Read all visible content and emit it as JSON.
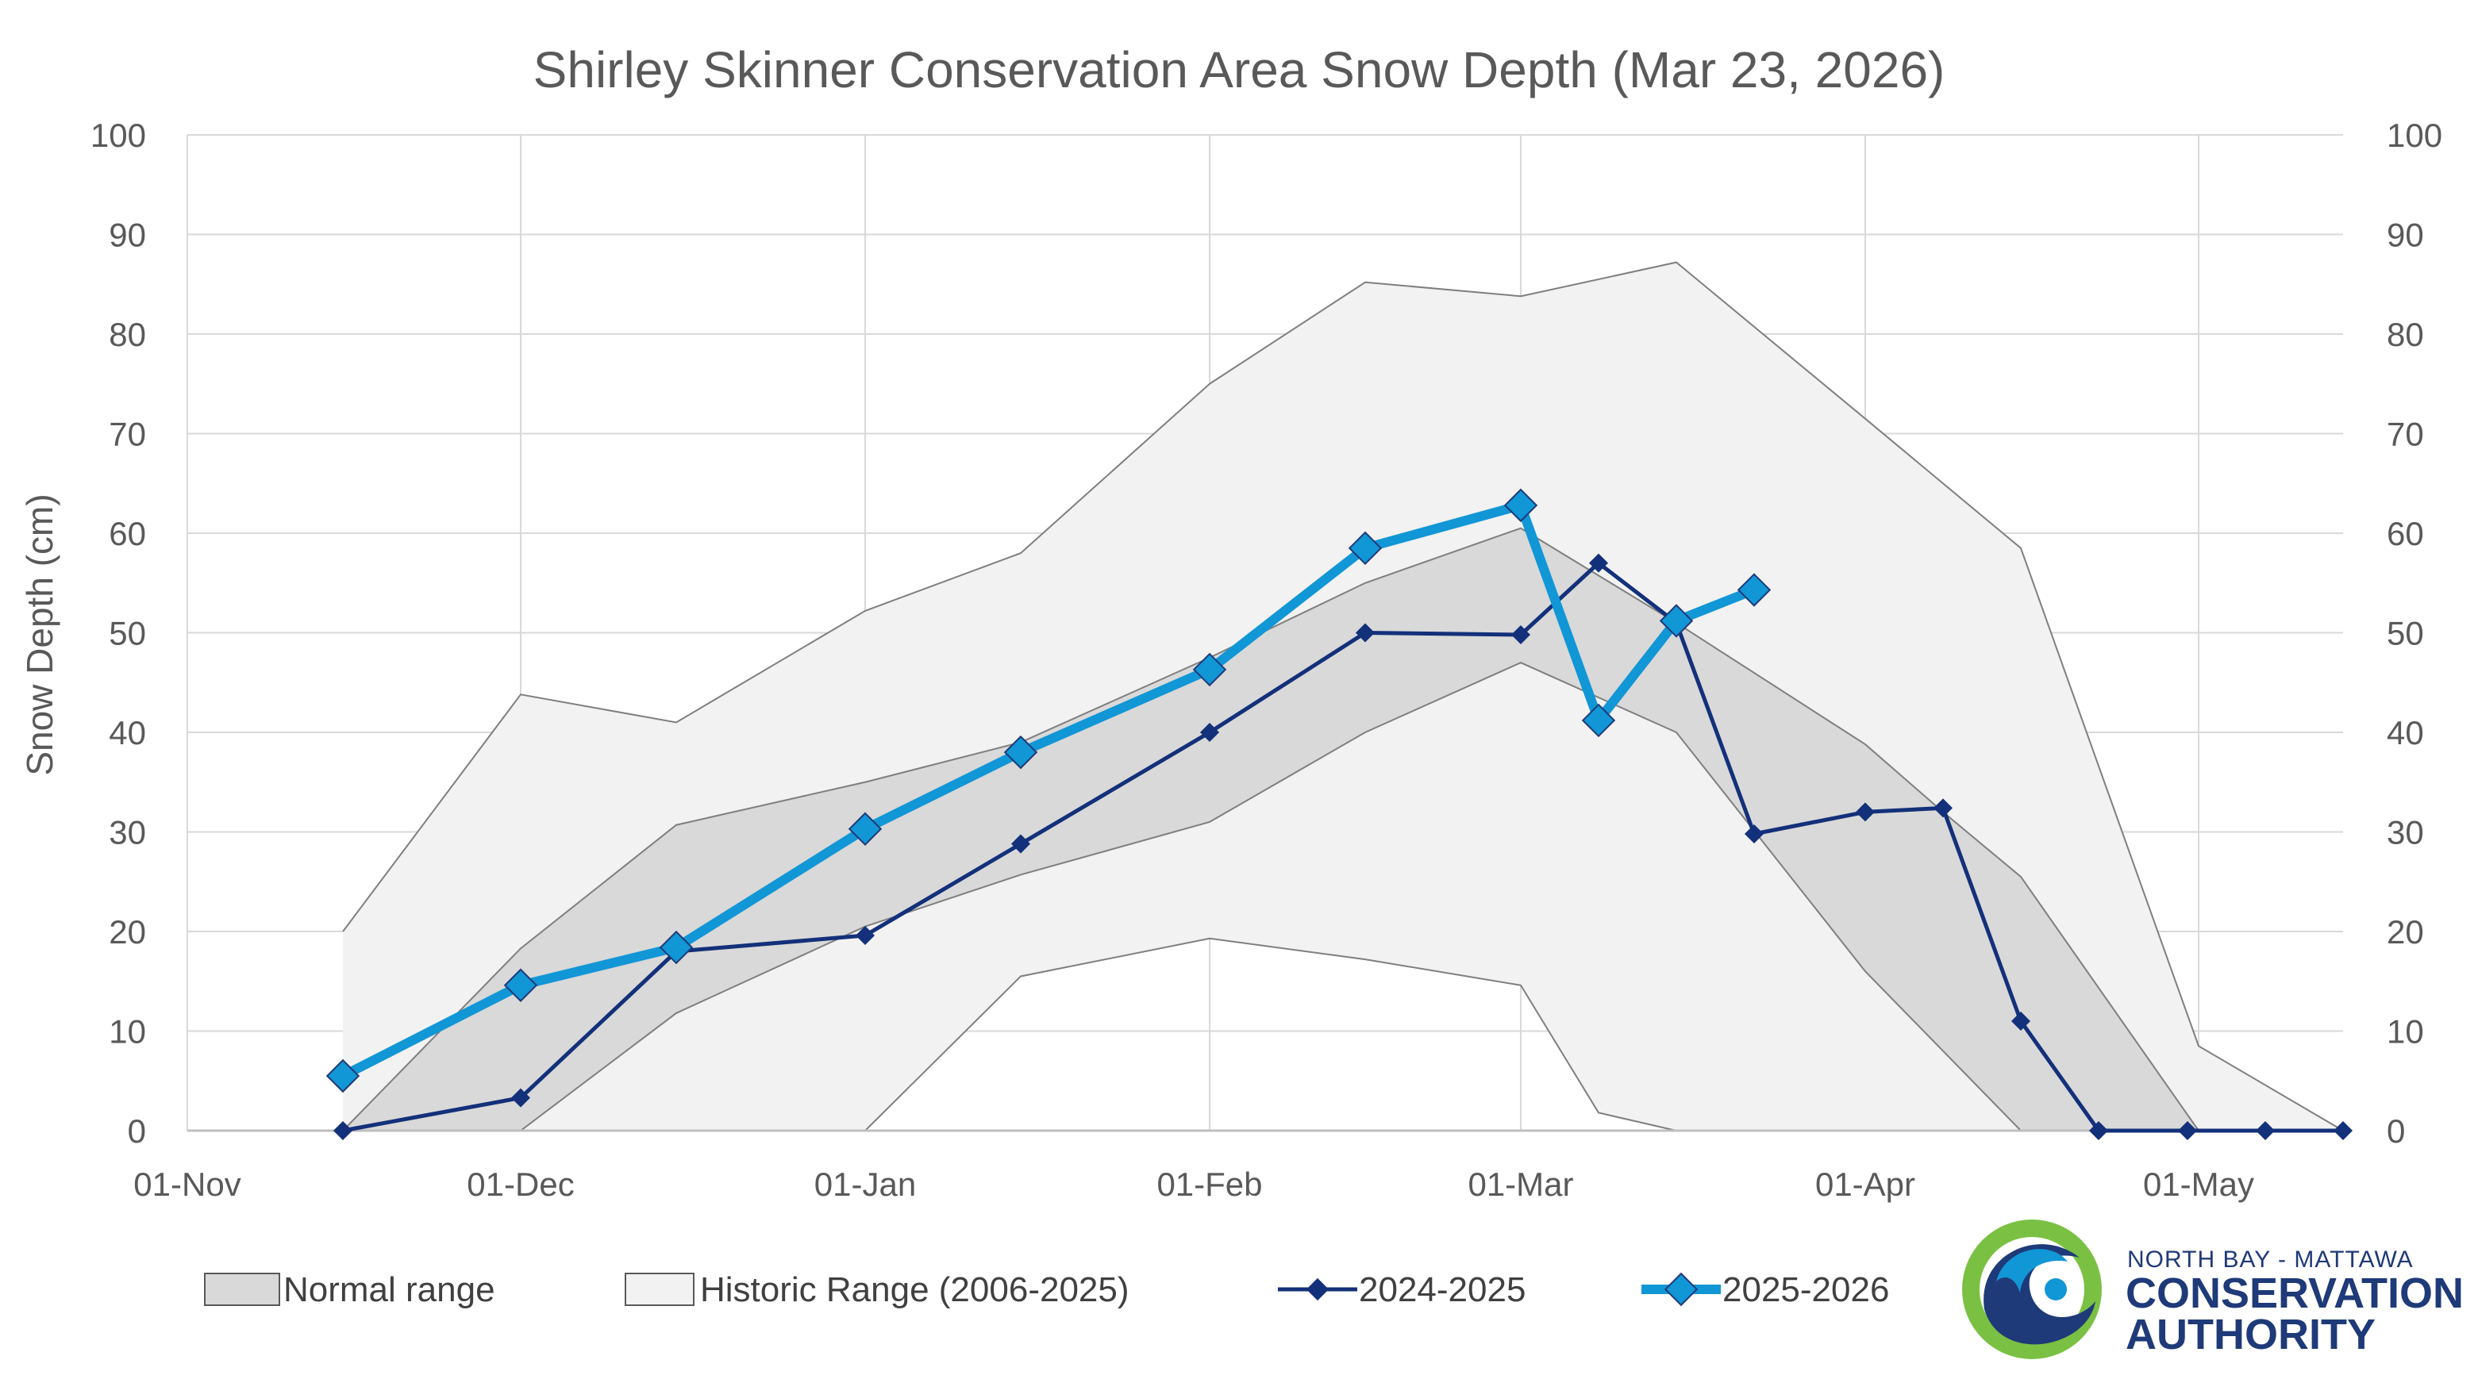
{
  "chart_data": {
    "type": "line",
    "title": "Shirley Skinner Conservation Area Snow Depth (Mar 23, 2026)",
    "ylabel": "Snow Depth (cm)",
    "xlabel": "",
    "ylim": [
      0,
      100
    ],
    "yticks": [
      "0",
      "10",
      "20",
      "30",
      "40",
      "50",
      "60",
      "70",
      "80",
      "90",
      "100"
    ],
    "xticks": [
      {
        "label": "01-Nov",
        "day": 0
      },
      {
        "label": "01-Dec",
        "day": 30
      },
      {
        "label": "01-Jan",
        "day": 61
      },
      {
        "label": "01-Feb",
        "day": 92
      },
      {
        "label": "01-Mar",
        "day": 120
      },
      {
        "label": "01-Apr",
        "day": 151
      },
      {
        "label": "01-May",
        "day": 181
      }
    ],
    "xlim_day": [
      0,
      194
    ],
    "grid": true,
    "legend_position": "bottom",
    "bands": [
      {
        "name": "Historic Range (2006-2025)",
        "color": "#f2f2f2",
        "upper": [
          [
            14,
            20
          ],
          [
            30,
            43.8
          ],
          [
            44,
            41
          ],
          [
            61,
            52.2
          ],
          [
            75,
            58
          ],
          [
            92,
            75
          ],
          [
            106,
            85.2
          ],
          [
            120,
            83.8
          ],
          [
            134,
            87.2
          ],
          [
            151,
            71.5
          ],
          [
            158,
            65
          ],
          [
            165,
            58.5
          ],
          [
            181,
            8.5
          ],
          [
            194,
            0
          ]
        ],
        "lower": [
          [
            14,
            0
          ],
          [
            30,
            0
          ],
          [
            44,
            0
          ],
          [
            61,
            0
          ],
          [
            75,
            15.5
          ],
          [
            92,
            19.3
          ],
          [
            106,
            17.2
          ],
          [
            120,
            14.6
          ],
          [
            127,
            1.8
          ],
          [
            134,
            0
          ],
          [
            151,
            0
          ],
          [
            165,
            0
          ],
          [
            181,
            0
          ],
          [
            194,
            0
          ]
        ]
      },
      {
        "name": "Normal range",
        "color": "#d9d9d9",
        "upper": [
          [
            14,
            0
          ],
          [
            30,
            18.3
          ],
          [
            44,
            30.7
          ],
          [
            61,
            35
          ],
          [
            75,
            39
          ],
          [
            92,
            47.5
          ],
          [
            106,
            55
          ],
          [
            120,
            60.5
          ],
          [
            134,
            51
          ],
          [
            151,
            38.8
          ],
          [
            158,
            32
          ],
          [
            165,
            25.5
          ],
          [
            181,
            0
          ]
        ],
        "lower": [
          [
            14,
            0
          ],
          [
            30,
            0
          ],
          [
            44,
            11.8
          ],
          [
            61,
            20.5
          ],
          [
            75,
            25.7
          ],
          [
            92,
            31
          ],
          [
            106,
            40
          ],
          [
            120,
            47
          ],
          [
            134,
            40
          ],
          [
            151,
            16
          ],
          [
            158,
            8
          ],
          [
            165,
            0
          ],
          [
            181,
            0
          ]
        ]
      }
    ],
    "series": [
      {
        "name": "2024-2025",
        "color": "#13307a",
        "points": [
          [
            14,
            0
          ],
          [
            30,
            3.3
          ],
          [
            44,
            18
          ],
          [
            61,
            19.6
          ],
          [
            75,
            28.8
          ],
          [
            92,
            40
          ],
          [
            106,
            50
          ],
          [
            120,
            49.8
          ],
          [
            127,
            57
          ],
          [
            134,
            51
          ],
          [
            141,
            29.8
          ],
          [
            151,
            32
          ],
          [
            158,
            32.4
          ],
          [
            165,
            11
          ],
          [
            172,
            0
          ],
          [
            180,
            0
          ],
          [
            187,
            0
          ],
          [
            194,
            0
          ]
        ]
      },
      {
        "name": "2025-2026",
        "color": "#1196d6",
        "points": [
          [
            14,
            5.5
          ],
          [
            30,
            14.6
          ],
          [
            44,
            18.4
          ],
          [
            61,
            30.3
          ],
          [
            75,
            38
          ],
          [
            92,
            46.3
          ],
          [
            106,
            58.5
          ],
          [
            120,
            62.8
          ],
          [
            127,
            41.2
          ],
          [
            134,
            51.2
          ],
          [
            141,
            54.3
          ]
        ]
      }
    ]
  },
  "logo": {
    "line1": "NORTH BAY - MATTAWA",
    "line2": "CONSERVATION",
    "line3": "AUTHORITY",
    "colors": {
      "green": "#7ac143",
      "blue": "#1196d6",
      "navy": "#1f3a78"
    }
  }
}
